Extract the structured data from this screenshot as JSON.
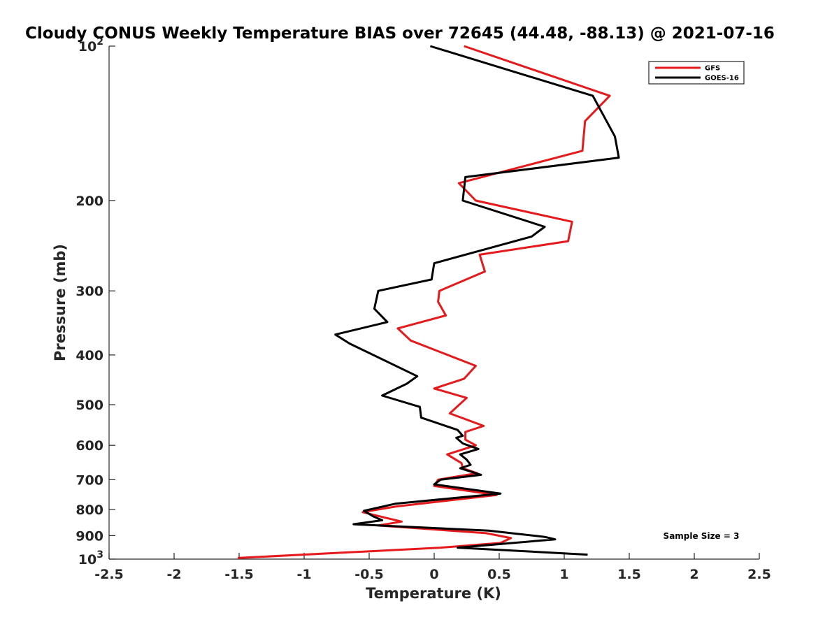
{
  "chart_data": {
    "type": "line",
    "title": "Cloudy CONUS Weekly Temperature BIAS over 72645 (44.48, -88.13) @ 2021-07-16",
    "xlabel": "Temperature (K)",
    "ylabel": "Pressure (mb)",
    "xlim": [
      -2.5,
      2.5
    ],
    "ylim": [
      100,
      1000
    ],
    "y_scale": "log",
    "y_reversed": true,
    "x_ticks": [
      -2.5,
      -2,
      -1.5,
      -1,
      -0.5,
      0,
      0.5,
      1,
      1.5,
      2,
      2.5
    ],
    "x_tick_labels": [
      "-2.5",
      "-2",
      "-1.5",
      "-1",
      "-0.5",
      "0",
      "0.5",
      "1",
      "1.5",
      "2",
      "2.5"
    ],
    "y_ticks": [
      100,
      200,
      300,
      400,
      500,
      600,
      700,
      800,
      900,
      1000
    ],
    "y_tick_labels": [
      {
        "base": "10",
        "exp": "2"
      },
      {
        "base": "200",
        "exp": ""
      },
      {
        "base": "300",
        "exp": ""
      },
      {
        "base": "400",
        "exp": ""
      },
      {
        "base": "500",
        "exp": ""
      },
      {
        "base": "600",
        "exp": ""
      },
      {
        "base": "700",
        "exp": ""
      },
      {
        "base": "800",
        "exp": ""
      },
      {
        "base": "900",
        "exp": ""
      },
      {
        "base": "10",
        "exp": "3"
      }
    ],
    "grid": false,
    "legend_position": "top-right",
    "series": [
      {
        "name": "GFS",
        "color": "#e41a1c",
        "points": [
          [
            0.23,
            100
          ],
          [
            1.35,
            125
          ],
          [
            1.16,
            140
          ],
          [
            1.14,
            160
          ],
          [
            0.19,
            185
          ],
          [
            0.32,
            200
          ],
          [
            1.06,
            220
          ],
          [
            1.03,
            240
          ],
          [
            0.35,
            255
          ],
          [
            0.39,
            275
          ],
          [
            0.04,
            300
          ],
          [
            0.03,
            315
          ],
          [
            0.09,
            335
          ],
          [
            -0.28,
            355
          ],
          [
            -0.18,
            375
          ],
          [
            0.32,
            420
          ],
          [
            0.23,
            445
          ],
          [
            0.0,
            465
          ],
          [
            0.25,
            485
          ],
          [
            0.12,
            520
          ],
          [
            0.38,
            550
          ],
          [
            0.24,
            565
          ],
          [
            0.24,
            585
          ],
          [
            0.32,
            600
          ],
          [
            0.1,
            625
          ],
          [
            0.21,
            650
          ],
          [
            0.22,
            665
          ],
          [
            0.33,
            680
          ],
          [
            0.03,
            700
          ],
          [
            0.0,
            720
          ],
          [
            0.48,
            750
          ],
          [
            -0.3,
            790
          ],
          [
            -0.55,
            810
          ],
          [
            -0.38,
            830
          ],
          [
            -0.25,
            845
          ],
          [
            -0.43,
            860
          ],
          [
            0.4,
            890
          ],
          [
            0.59,
            910
          ],
          [
            0.51,
            930
          ],
          [
            0.05,
            950
          ],
          [
            -1.51,
            995
          ]
        ]
      },
      {
        "name": "GOES-16",
        "color": "#000000",
        "points": [
          [
            -0.03,
            100
          ],
          [
            1.22,
            125
          ],
          [
            1.39,
            150
          ],
          [
            1.42,
            165
          ],
          [
            0.24,
            180
          ],
          [
            0.22,
            200
          ],
          [
            0.85,
            225
          ],
          [
            0.75,
            235
          ],
          [
            0.0,
            265
          ],
          [
            -0.02,
            285
          ],
          [
            -0.43,
            300
          ],
          [
            -0.46,
            325
          ],
          [
            -0.36,
            345
          ],
          [
            -0.76,
            365
          ],
          [
            -0.65,
            380
          ],
          [
            -0.13,
            440
          ],
          [
            -0.21,
            455
          ],
          [
            -0.4,
            480
          ],
          [
            -0.11,
            505
          ],
          [
            -0.1,
            530
          ],
          [
            0.18,
            560
          ],
          [
            0.22,
            575
          ],
          [
            0.17,
            580
          ],
          [
            0.22,
            595
          ],
          [
            0.34,
            610
          ],
          [
            0.2,
            625
          ],
          [
            0.25,
            640
          ],
          [
            0.28,
            655
          ],
          [
            0.2,
            665
          ],
          [
            0.36,
            685
          ],
          [
            0.05,
            700
          ],
          [
            0.0,
            715
          ],
          [
            0.51,
            745
          ],
          [
            -0.3,
            780
          ],
          [
            -0.54,
            805
          ],
          [
            -0.47,
            825
          ],
          [
            -0.4,
            840
          ],
          [
            -0.62,
            855
          ],
          [
            0.42,
            880
          ],
          [
            0.85,
            905
          ],
          [
            0.93,
            915
          ],
          [
            0.18,
            950
          ],
          [
            1.18,
            980
          ]
        ]
      }
    ],
    "legend": [
      {
        "label": "GFS",
        "color": "#e41a1c"
      },
      {
        "label": "GOES-16",
        "color": "#000000"
      }
    ],
    "annotation": "Sample Size = 3"
  }
}
